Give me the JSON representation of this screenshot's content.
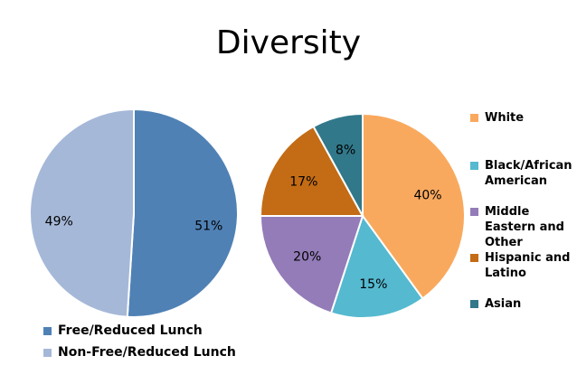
{
  "chart_data": [
    {
      "type": "pie",
      "title": "Diversity",
      "slices": [
        {
          "name": "Free/Reduced Lunch",
          "value": 51,
          "label": "51%",
          "color": "#4f81b5"
        },
        {
          "name": "Non-Free/Reduced Lunch",
          "value": 49,
          "label": "49%",
          "color": "#a5b8d8"
        }
      ],
      "legend_position": "bottom"
    },
    {
      "type": "pie",
      "slices": [
        {
          "name": "White",
          "value": 40,
          "label": "40%",
          "color": "#f9a95e"
        },
        {
          "name": "Black/African American",
          "value": 15,
          "label": "15%",
          "color": "#55b9d0"
        },
        {
          "name": "Middle Eastern and Other",
          "value": 20,
          "label": "20%",
          "color": "#937cb8"
        },
        {
          "name": "Hispanic and Latino",
          "value": 17,
          "label": "17%",
          "color": "#c36c15"
        },
        {
          "name": "Asian",
          "value": 8,
          "label": "8%",
          "color": "#31788a"
        }
      ],
      "legend_position": "right"
    }
  ]
}
